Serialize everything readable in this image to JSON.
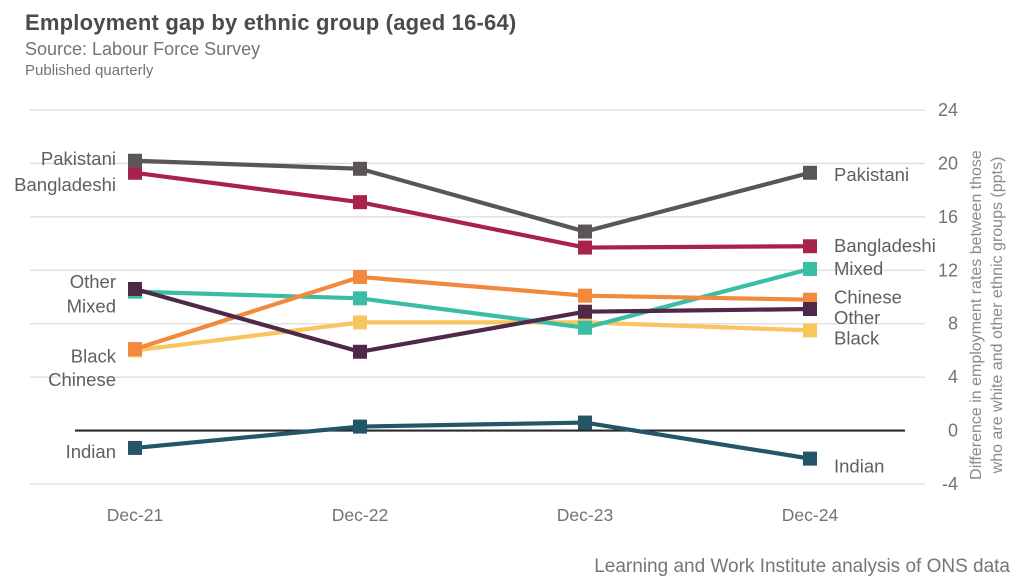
{
  "header": {
    "title": "Employment gap by ethnic group (aged 16-64)",
    "subtitle": "Source: Labour Force Survey",
    "note": "Published quarterly"
  },
  "footer": {
    "credit": "Learning and Work Institute analysis of ONS data"
  },
  "colors": {
    "grid": "#dcdcdc",
    "zero_line": "#2b2b2b",
    "text": "#5f5f5f",
    "tick_text": "#737373"
  },
  "chart_data": {
    "type": "line",
    "categories": [
      "Dec-21",
      "Dec-22",
      "Dec-23",
      "Dec-24"
    ],
    "ylim": [
      -4,
      24
    ],
    "yticks": [
      24,
      20,
      16,
      12,
      8,
      4,
      0,
      -4
    ],
    "grid": true,
    "zero_baseline": 0,
    "legend_position": "inline start/end labels",
    "ylabel": "Difference in employment rates between those who are white and other ethnic groups (ppts)",
    "ylabel_lines": [
      "Difference in employment rates between those",
      "who are white and other ethnic groups (ppts)"
    ],
    "series": [
      {
        "name": "Black",
        "color": "#f8c55f",
        "values": [
          6.0,
          8.1,
          8.1,
          7.5
        ],
        "left_label_dy": 6,
        "right_label_dy": 8
      },
      {
        "name": "Mixed",
        "color": "#3bbda5",
        "values": [
          10.4,
          9.9,
          7.7,
          12.1
        ],
        "left_label_dy": 15,
        "right_label_dy": 0
      },
      {
        "name": "Chinese",
        "color": "#f18a3c",
        "values": [
          6.1,
          11.5,
          10.1,
          9.8
        ],
        "left_label_dy": 31,
        "right_label_dy": -2
      },
      {
        "name": "Other",
        "color": "#4f284a",
        "values": [
          10.6,
          5.9,
          8.9,
          9.1
        ],
        "left_label_dy": -7,
        "right_label_dy": 9
      },
      {
        "name": "Bangladeshi",
        "color": "#a8234c",
        "values": [
          19.3,
          17.1,
          13.7,
          13.8
        ],
        "left_label_dy": 12,
        "right_label_dy": 0
      },
      {
        "name": "Pakistani",
        "color": "#5a5657",
        "values": [
          20.2,
          19.6,
          14.9,
          19.3
        ],
        "left_label_dy": -2,
        "right_label_dy": 2
      },
      {
        "name": "Indian",
        "color": "#235666",
        "values": [
          -1.3,
          0.3,
          0.6,
          -2.1
        ],
        "left_label_dy": 4,
        "right_label_dy": 8
      }
    ]
  }
}
